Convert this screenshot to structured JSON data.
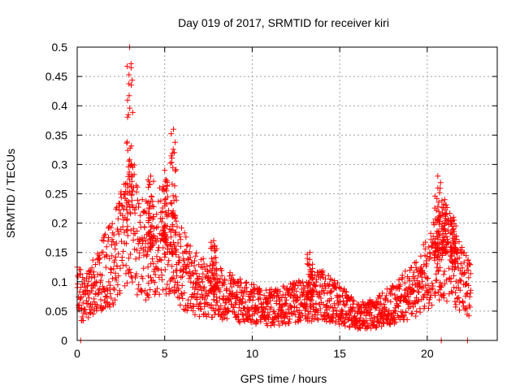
{
  "chart_data": {
    "type": "scatter",
    "title": "Day 019 of 2017, SRMTID for receiver kiri",
    "xlabel": "GPS time / hours",
    "ylabel": "SRMTID / TECUs",
    "xlim": [
      0,
      24
    ],
    "ylim": [
      0,
      0.5
    ],
    "x_ticks": [
      0,
      5,
      10,
      15,
      20
    ],
    "x_tick_labels": [
      "0",
      "5",
      "10",
      "15",
      "20"
    ],
    "y_ticks": [
      0,
      0.05,
      0.1,
      0.15,
      0.2,
      0.25,
      0.3,
      0.35,
      0.4,
      0.45,
      0.5
    ],
    "y_tick_labels": [
      "0",
      "0.05",
      "0.1",
      "0.15",
      "0.2",
      "0.25",
      "0.3",
      "0.35",
      "0.4",
      "0.45",
      "0.5"
    ],
    "grid": true,
    "legend": "none",
    "marker": "plus",
    "color": "#ff0000",
    "series": [
      {
        "values_profile": [
          [
            0.0,
            0.08
          ],
          [
            0.5,
            0.07
          ],
          [
            1.0,
            0.09
          ],
          [
            1.5,
            0.11
          ],
          [
            2.0,
            0.13
          ],
          [
            2.5,
            0.17
          ],
          [
            3.0,
            0.22
          ],
          [
            3.5,
            0.16
          ],
          [
            4.0,
            0.15
          ],
          [
            4.5,
            0.16
          ],
          [
            5.0,
            0.17
          ],
          [
            5.5,
            0.14
          ],
          [
            6.0,
            0.12
          ],
          [
            6.5,
            0.1
          ],
          [
            7.0,
            0.09
          ],
          [
            8.0,
            0.08
          ],
          [
            9.0,
            0.07
          ],
          [
            10.0,
            0.06
          ],
          [
            11.0,
            0.055
          ],
          [
            12.0,
            0.06
          ],
          [
            13.0,
            0.07
          ],
          [
            14.0,
            0.075
          ],
          [
            15.0,
            0.06
          ],
          [
            16.0,
            0.04
          ],
          [
            17.0,
            0.045
          ],
          [
            18.0,
            0.06
          ],
          [
            19.0,
            0.08
          ],
          [
            20.0,
            0.11
          ],
          [
            20.5,
            0.14
          ],
          [
            21.0,
            0.15
          ],
          [
            21.5,
            0.13
          ],
          [
            22.0,
            0.1
          ],
          [
            22.5,
            0.08
          ]
        ],
        "peaks": [
          {
            "x": 3.0,
            "y": 0.5
          },
          {
            "x": 4.2,
            "y": 0.28
          },
          {
            "x": 5.0,
            "y": 0.29
          },
          {
            "x": 5.5,
            "y": 0.36
          },
          {
            "x": 7.8,
            "y": 0.17
          },
          {
            "x": 13.3,
            "y": 0.15
          },
          {
            "x": 20.6,
            "y": 0.28
          },
          {
            "x": 21.0,
            "y": 0.24
          },
          {
            "x": 21.5,
            "y": 0.21
          }
        ],
        "zero_points": [
          {
            "x": 0.2,
            "y": 0
          },
          {
            "x": 20.8,
            "y": 0
          },
          {
            "x": 22.3,
            "y": 0
          }
        ]
      }
    ]
  }
}
